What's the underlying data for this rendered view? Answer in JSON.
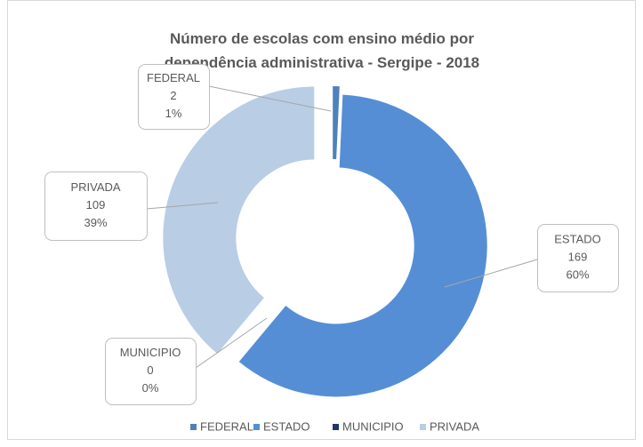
{
  "chart_data": {
    "type": "doughnut",
    "title": "Número de escolas com ensino médio por dependência administrativa - Sergipe - 2018",
    "categories": [
      "FEDERAL",
      "ESTADO",
      "MUNICIPIO",
      "PRIVADA"
    ],
    "values": [
      2,
      169,
      0,
      109
    ],
    "percent_labels": [
      "1%",
      "60%",
      "0%",
      "39%"
    ],
    "colors": [
      "#4f81bd",
      "#558ed5",
      "#1f3864",
      "#b9cde5"
    ],
    "legend": "bottom"
  }
}
